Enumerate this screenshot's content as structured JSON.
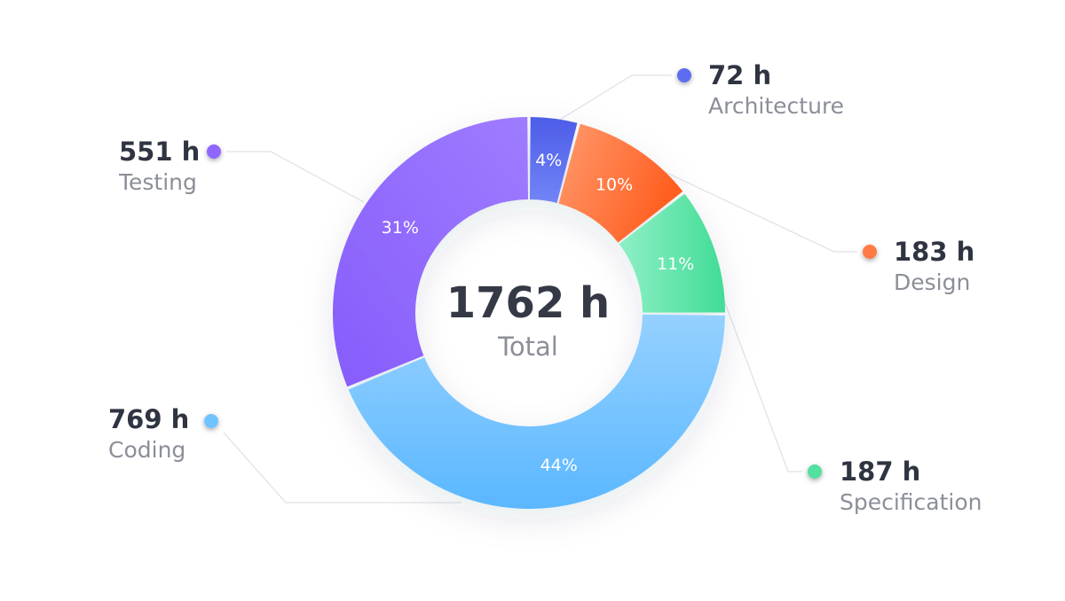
{
  "chart_data": {
    "type": "pie",
    "variant": "donut",
    "total": {
      "value": "1762 h",
      "label": "Total"
    },
    "slices": [
      {
        "name": "Architecture",
        "hours": "72 h",
        "value": 72,
        "percent_label": "4%",
        "color": "#5b6df0"
      },
      {
        "name": "Design",
        "hours": "183 h",
        "value": 183,
        "percent_label": "10%",
        "color": "#ff7a45"
      },
      {
        "name": "Specification",
        "hours": "187 h",
        "value": 187,
        "percent_label": "11%",
        "color": "#52e0a0"
      },
      {
        "name": "Coding",
        "hours": "769 h",
        "value": 769,
        "percent_label": "44%",
        "color": "#6fc3ff"
      },
      {
        "name": "Testing",
        "hours": "551 h",
        "value": 551,
        "percent_label": "31%",
        "color": "#8f66ff"
      }
    ]
  }
}
